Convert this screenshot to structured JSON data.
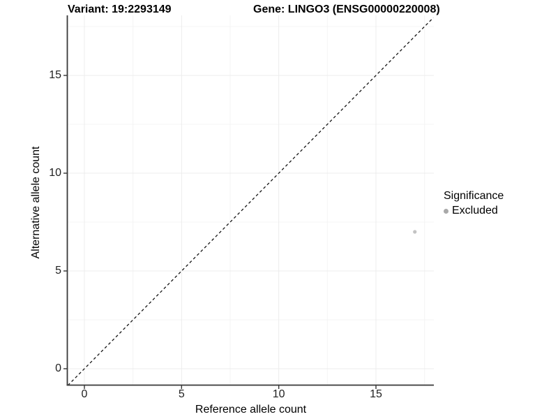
{
  "titles": {
    "variant": "Variant: 19:2293149",
    "gene": "Gene: LINGO3 (ENSG00000220008)"
  },
  "axes": {
    "x": {
      "label": "Reference allele count",
      "ticks": [
        "0",
        "5",
        "10",
        "15"
      ]
    },
    "y": {
      "label": "Alternative allele count",
      "ticks": [
        "0",
        "5",
        "10",
        "15"
      ]
    }
  },
  "legend": {
    "title": "Significance",
    "items": [
      {
        "label": "Excluded",
        "color": "#a9a9a9"
      }
    ]
  },
  "colors": {
    "point": "#c3c3c3",
    "axis_line": "#383838",
    "grid_major": "#ececec",
    "grid_minor": "#f4f4f4",
    "reference_line": "#141414",
    "background": "#ffffff"
  },
  "chart_data": {
    "type": "scatter",
    "title": "Variant: 19:2293149 — Gene: LINGO3 (ENSG00000220008)",
    "xlabel": "Reference allele count",
    "ylabel": "Alternative allele count",
    "xlim": [
      -0.9,
      18.0
    ],
    "ylim": [
      -0.85,
      18.1
    ],
    "x_ticks": [
      0,
      5,
      10,
      15
    ],
    "y_ticks": [
      0,
      5,
      10,
      15
    ],
    "x_minor_ticks": [
      2.5,
      7.5,
      12.5,
      17.5
    ],
    "y_minor_ticks": [
      2.5,
      7.5,
      12.5,
      17.5
    ],
    "grid": "major and minor, very faint",
    "legend_position": "right",
    "reference_line": "identity y = x, black dashed",
    "series": [
      {
        "name": "Excluded",
        "color": "#c3c3c3",
        "points": [
          {
            "x": 17,
            "y": 7
          }
        ]
      }
    ]
  }
}
